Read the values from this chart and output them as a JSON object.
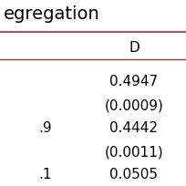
{
  "header_text": "egregation",
  "col_header": "D",
  "rows": [
    {
      "left": "",
      "right": "0.4947"
    },
    {
      "left": "",
      "right": "(0.0009)"
    },
    {
      "left": ".9",
      "right": "0.4442"
    },
    {
      "left": "",
      "right": "(0.0011)"
    },
    {
      "left": ".1",
      "right": "0.0505"
    }
  ],
  "line_color": "#8B3A3A",
  "bg_color": "#ffffff",
  "text_color": "#000000",
  "font_size": 11,
  "header_font_size": 14
}
